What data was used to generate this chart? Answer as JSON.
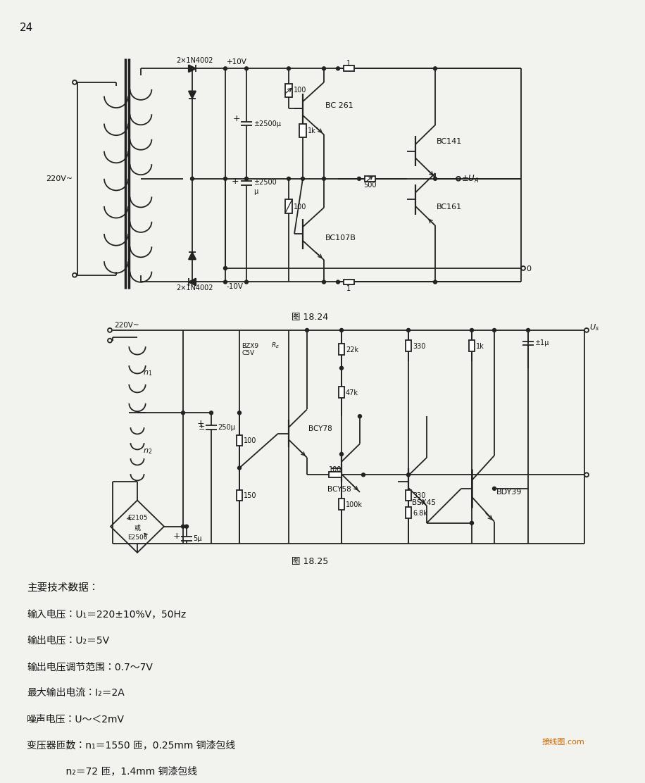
{
  "bg_color": "#f2f2ee",
  "lc": "#222222",
  "tc": "#111111",
  "page_num": "24",
  "fig1_cap": "图 18.24",
  "fig2_cap": "图 18.25",
  "wm": "接线图.com",
  "wm_color": "#cc6600",
  "spec_header": "主要技术数据：",
  "specs": [
    "输入电压：U₁＝220±10%V，50Hz",
    "输出电压：U₂＝5V",
    "输出电压调节范围：0.7～7V",
    "最大输出电流：I₂＝2A",
    "噪声电压：U～＜2mV",
    "变压器匝数：n₁＝1550 匝，0.25mm 铜漆包线",
    "　　　　n₂＝72 匝，1.4mm 铜漆包线"
  ]
}
